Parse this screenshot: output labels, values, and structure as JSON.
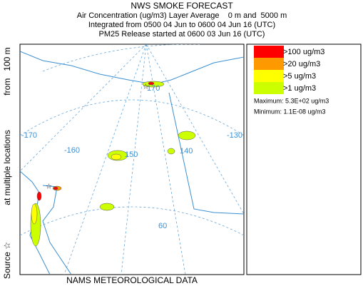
{
  "header": {
    "title": "NWS SMOKE FORECAST",
    "lines": [
      "Air Concentration (ug/m3) Layer Average    0 m and  5000 m",
      "Integrated from 0500 04 Jun to 0600 04 Jun 16 (UTC)",
      "PM25 Release started at 0600 03 Jun 16 (UTC)"
    ]
  },
  "side_label": [
    "Source ☆",
    "at multiple locations",
    "from   100 m"
  ],
  "footer": "NAMS METEOROLOGICAL DATA",
  "map": {
    "graticule_labels": [
      "170",
      "-170",
      "-160",
      "150",
      "140",
      "-130",
      "60"
    ]
  },
  "legend": {
    "items": [
      {
        "label": ">100 ug/m3",
        "color": "#ff0000"
      },
      {
        "label": ">20 ug/m3",
        "color": "#ff9900"
      },
      {
        "label": ">5 ug/m3",
        "color": "#ffff00"
      },
      {
        "label": ">1 ug/m3",
        "color": "#ccff00"
      }
    ],
    "maximum": "Maximum: 5.3E+02 ug/m3",
    "minimum": "Minimum: 1.1E-08 ug/m3"
  }
}
